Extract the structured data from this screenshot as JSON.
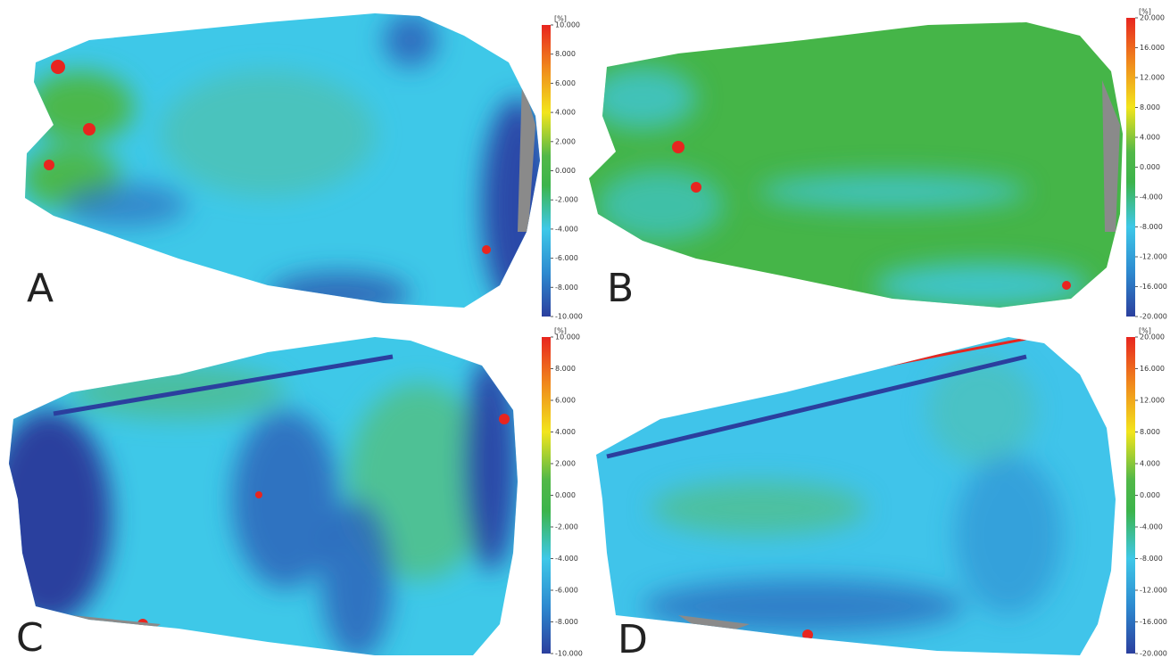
{
  "panels": [
    {
      "label": "A",
      "unit": "[%]",
      "ticks": [
        {
          "value": 10,
          "label": "10.000"
        },
        {
          "value": 8,
          "label": "8.000"
        },
        {
          "value": 6,
          "label": "6.000"
        },
        {
          "value": 4,
          "label": "4.000"
        },
        {
          "value": 2,
          "label": "2.000"
        },
        {
          "value": 0,
          "label": "0.000"
        },
        {
          "value": -2,
          "label": "-2.000"
        },
        {
          "value": -4,
          "label": "-4.000"
        },
        {
          "value": -6,
          "label": "-6.000"
        },
        {
          "value": -8,
          "label": "-8.000"
        },
        {
          "value": -10,
          "label": "-10.000"
        }
      ]
    },
    {
      "label": "B",
      "unit": "[%]",
      "ticks": [
        {
          "value": 20,
          "label": "20.000"
        },
        {
          "value": 16,
          "label": "16.000"
        },
        {
          "value": 12,
          "label": "12.000"
        },
        {
          "value": 8,
          "label": "8.000"
        },
        {
          "value": 4,
          "label": "4.000"
        },
        {
          "value": 0,
          "label": "0.000"
        },
        {
          "value": -4,
          "label": "-4.000"
        },
        {
          "value": -8,
          "label": "-8.000"
        },
        {
          "value": -12,
          "label": "-12.000"
        },
        {
          "value": -16,
          "label": "-16.000"
        },
        {
          "value": -20,
          "label": "-20.000"
        }
      ]
    },
    {
      "label": "C",
      "unit": "[%]",
      "ticks": [
        {
          "value": 10,
          "label": "10.000"
        },
        {
          "value": 8,
          "label": "8.000"
        },
        {
          "value": 6,
          "label": "6.000"
        },
        {
          "value": 4,
          "label": "4.000"
        },
        {
          "value": 2,
          "label": "2.000"
        },
        {
          "value": 0,
          "label": "0.000"
        },
        {
          "value": -2,
          "label": "-2.000"
        },
        {
          "value": -4,
          "label": "-4.000"
        },
        {
          "value": -6,
          "label": "-6.000"
        },
        {
          "value": -8,
          "label": "-8.000"
        },
        {
          "value": -10,
          "label": "-10.000"
        }
      ]
    },
    {
      "label": "D",
      "unit": "[%]",
      "ticks": [
        {
          "value": 20,
          "label": "20.000"
        },
        {
          "value": 16,
          "label": "16.000"
        },
        {
          "value": 12,
          "label": "12.000"
        },
        {
          "value": 8,
          "label": "8.000"
        },
        {
          "value": 4,
          "label": "4.000"
        },
        {
          "value": 0,
          "label": "0.000"
        },
        {
          "value": -4,
          "label": "-4.000"
        },
        {
          "value": -8,
          "label": "-8.000"
        },
        {
          "value": -12,
          "label": "-12.000"
        },
        {
          "value": -16,
          "label": "-16.000"
        },
        {
          "value": -20,
          "label": "-20.000"
        }
      ]
    }
  ]
}
